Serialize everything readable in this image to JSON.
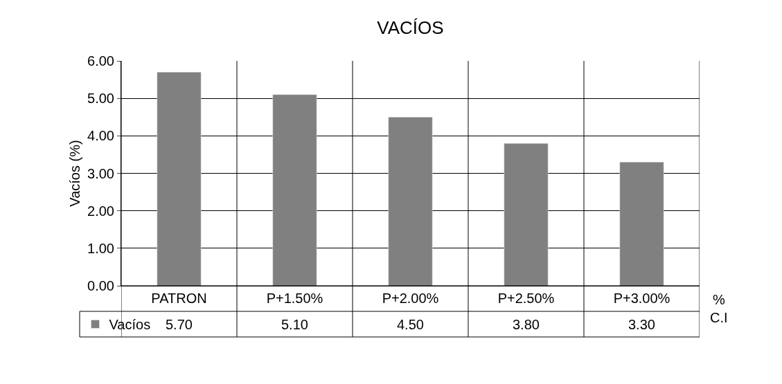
{
  "chart_data": {
    "type": "bar",
    "title": "VACÍOS",
    "ylabel": "Vacíos (%)",
    "xlabel": "%\nC.I",
    "categories": [
      "PATRON",
      "P+1.50%",
      "P+2.00%",
      "P+2.50%",
      "P+3.00%"
    ],
    "series": [
      {
        "name": "Vacíos",
        "color": "#808080",
        "values": [
          5.7,
          5.1,
          4.5,
          3.8,
          3.3
        ],
        "value_labels": [
          "5.70",
          "5.10",
          "4.50",
          "3.80",
          "3.30"
        ]
      }
    ],
    "ylim": [
      0,
      6
    ],
    "yticks": [
      {
        "value": 0,
        "label": "0.00"
      },
      {
        "value": 1,
        "label": "1.00"
      },
      {
        "value": 2,
        "label": "2.00"
      },
      {
        "value": 3,
        "label": "3.00"
      },
      {
        "value": 4,
        "label": "4.00"
      },
      {
        "value": 5,
        "label": "5.00"
      },
      {
        "value": 6,
        "label": "6.00"
      }
    ],
    "grid": "y",
    "legend": "bottom left"
  }
}
